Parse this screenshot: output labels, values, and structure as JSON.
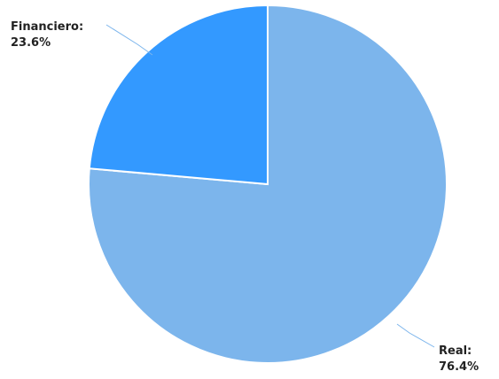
{
  "chart_data": {
    "type": "pie",
    "title": "",
    "slices": [
      {
        "label": "Real",
        "value": 76.4,
        "display": "76.4%",
        "color": "#7cb5ec"
      },
      {
        "label": "Financiero",
        "value": 23.6,
        "display": "23.6%",
        "color": "#3399ff"
      }
    ],
    "start_angle_deg": 0,
    "direction": "clockwise",
    "slice_border_color": "#ffffff",
    "connector_color": "#7cb5ec",
    "legend": "none"
  }
}
